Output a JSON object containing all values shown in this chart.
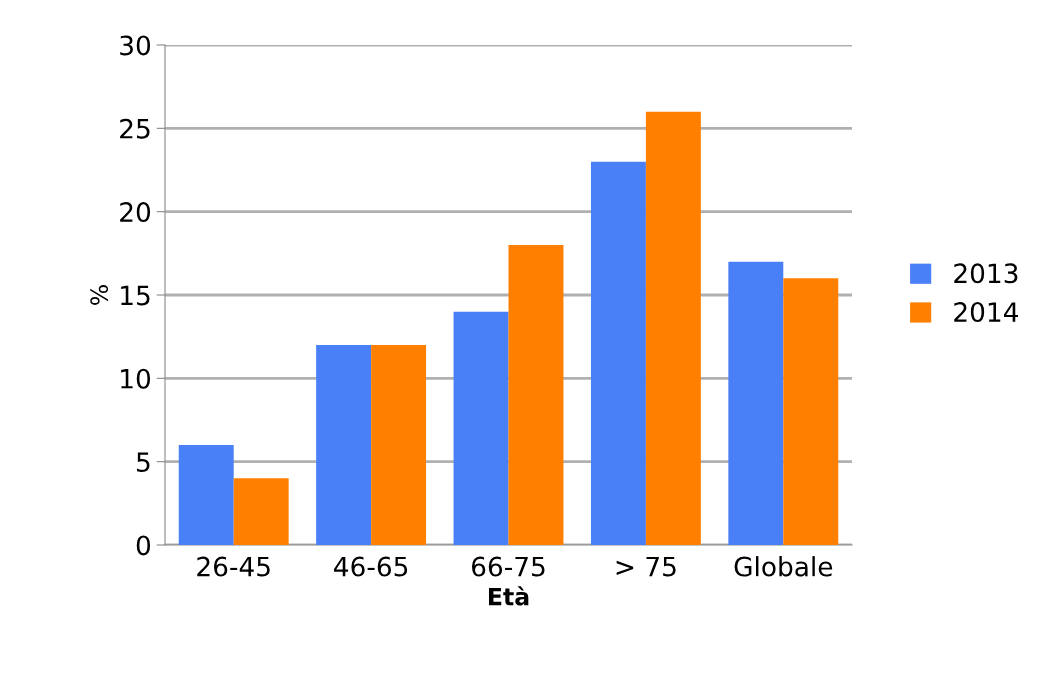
{
  "chart_data": {
    "type": "bar",
    "xlabel": "Età",
    "ylabel": "%",
    "categories": [
      "26-45",
      "46-65",
      "66-75",
      "> 75",
      "Globale"
    ],
    "series": [
      {
        "name": "2013",
        "color": "#4a80f7",
        "values": [
          6,
          12,
          14,
          23,
          17
        ]
      },
      {
        "name": "2014",
        "color": "#ff8000",
        "values": [
          4,
          12,
          18,
          26,
          16
        ]
      }
    ],
    "ylim": [
      0,
      30
    ],
    "yticks": [
      0,
      5,
      10,
      15,
      20,
      25,
      30
    ],
    "grid": "y",
    "legend": "right"
  }
}
